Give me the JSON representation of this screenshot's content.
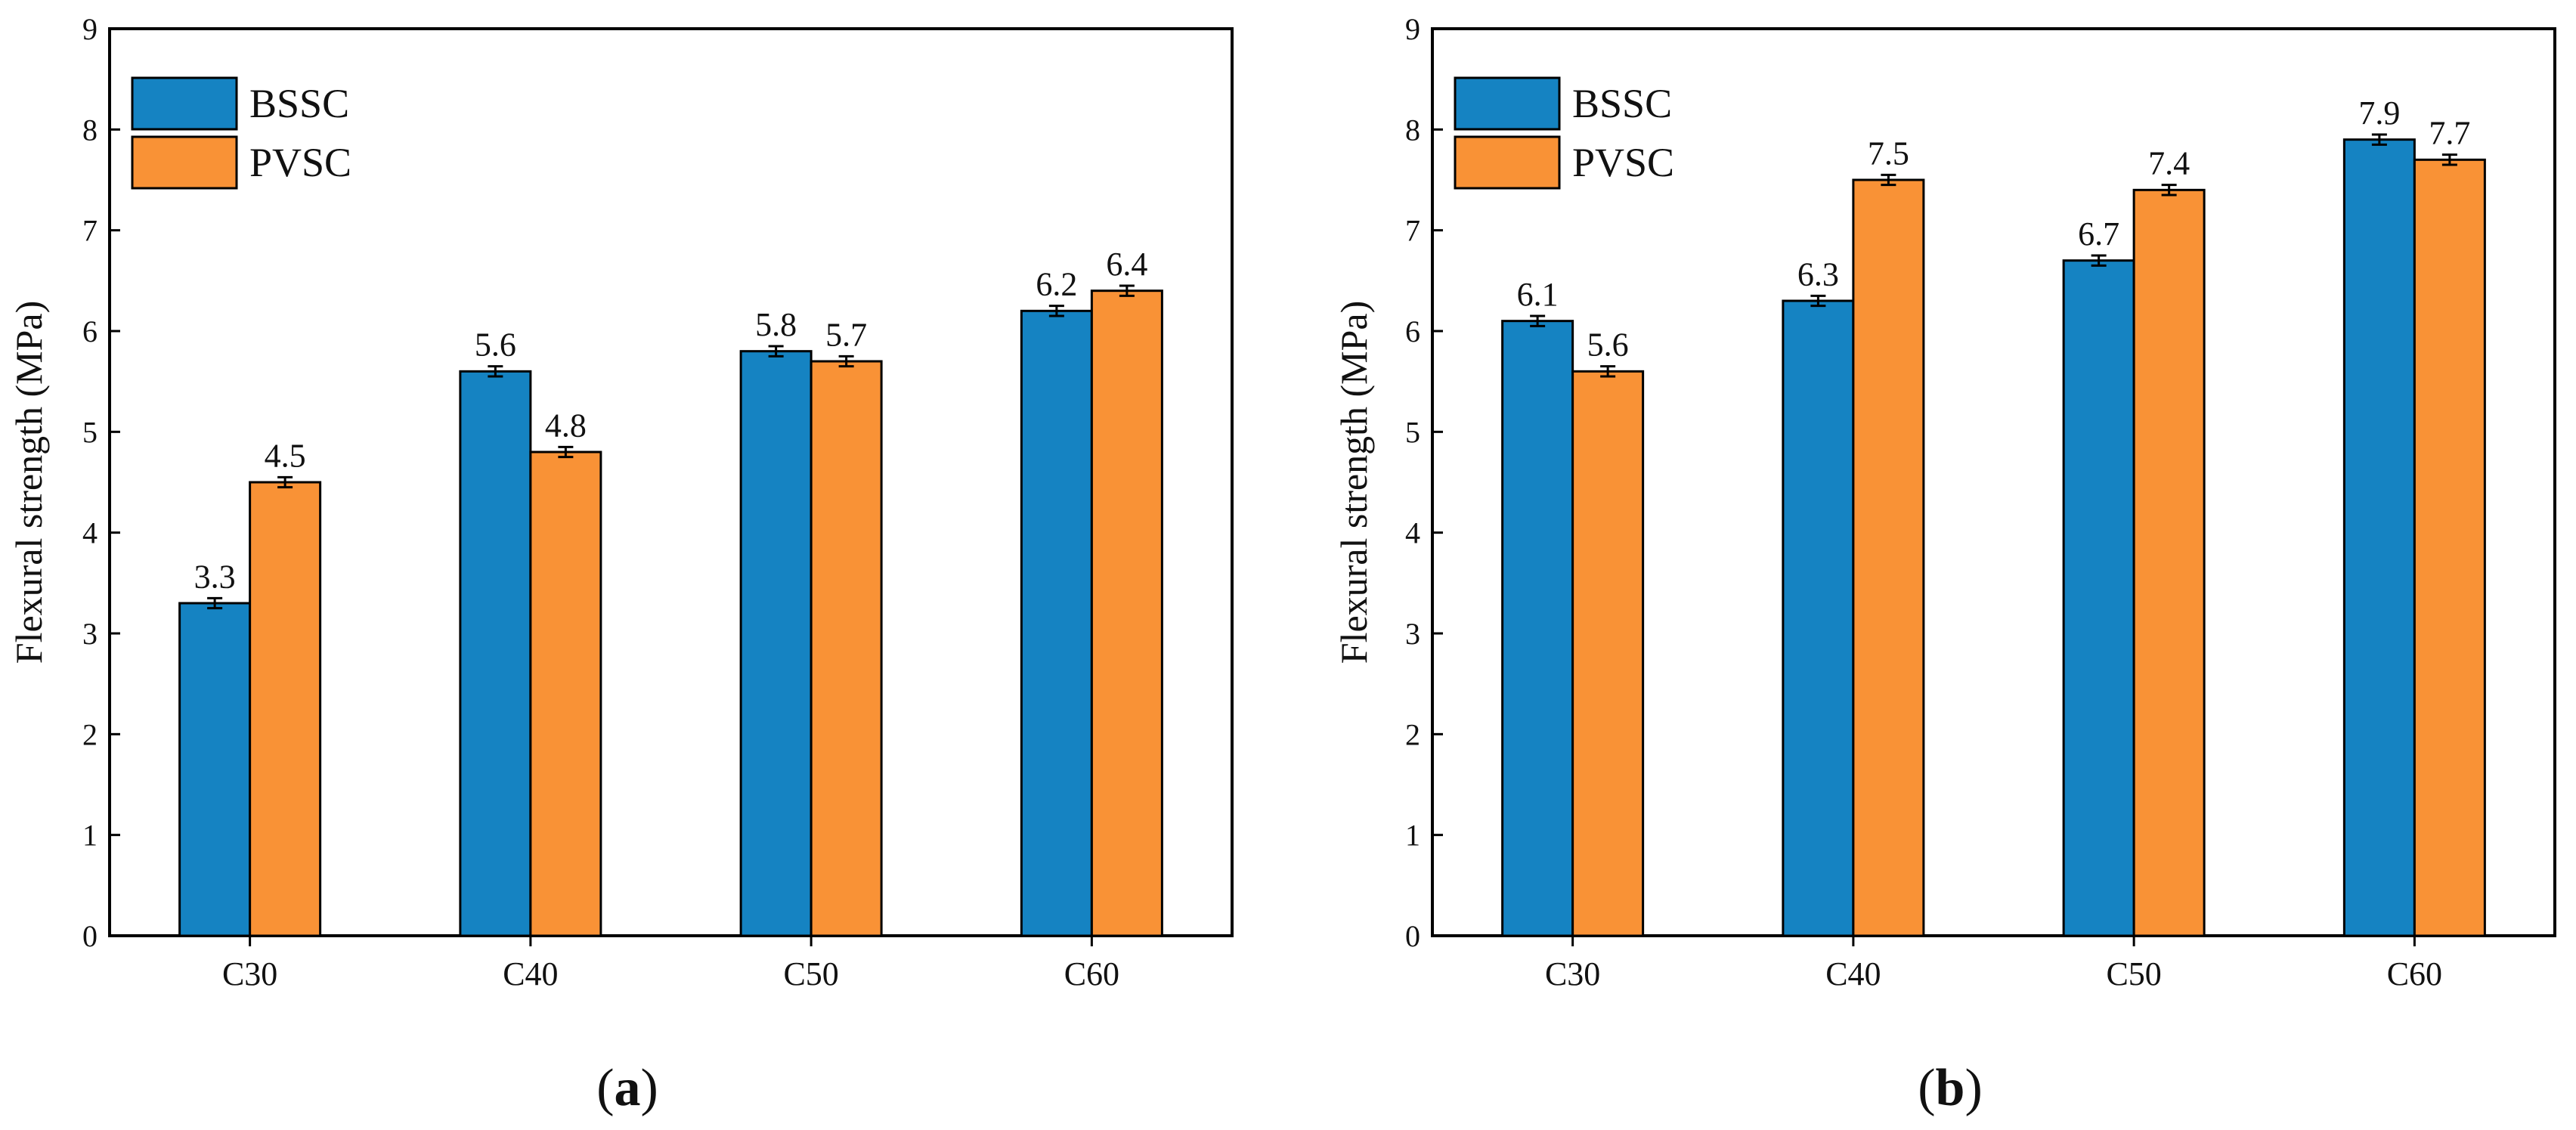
{
  "colors": {
    "BSSC": "#1583c2",
    "PVSC": "#f99236"
  },
  "chart_data": [
    {
      "type": "bar",
      "panel_label": "a",
      "categories": [
        "C30",
        "C40",
        "C50",
        "C60"
      ],
      "series": [
        {
          "name": "BSSC",
          "values": [
            3.3,
            5.6,
            5.8,
            6.2
          ],
          "labels": [
            "3.3",
            "5.6",
            "5.8",
            "6.2"
          ],
          "errors": [
            0.05,
            0.05,
            0.05,
            0.05
          ]
        },
        {
          "name": "PVSC",
          "values": [
            4.5,
            4.8,
            5.7,
            6.4
          ],
          "labels": [
            "4.5",
            "4.8",
            "5.7",
            "6.4"
          ],
          "errors": [
            0.05,
            0.05,
            0.05,
            0.05
          ]
        }
      ],
      "xlabel": "",
      "ylabel": "Flexural strength (MPa)",
      "ylim": [
        0,
        9
      ],
      "yticks": [
        "0",
        "1",
        "2",
        "3",
        "4",
        "5",
        "6",
        "7",
        "8",
        "9"
      ],
      "legend": "top-left"
    },
    {
      "type": "bar",
      "panel_label": "b",
      "categories": [
        "C30",
        "C40",
        "C50",
        "C60"
      ],
      "series": [
        {
          "name": "BSSC",
          "values": [
            6.1,
            6.3,
            6.7,
            7.9
          ],
          "labels": [
            "6.1",
            "6.3",
            "6.7",
            "7.9"
          ],
          "errors": [
            0.05,
            0.05,
            0.05,
            0.05
          ]
        },
        {
          "name": "PVSC",
          "values": [
            5.6,
            7.5,
            7.4,
            7.7
          ],
          "labels": [
            "5.6",
            "7.5",
            "7.4",
            "7.7"
          ],
          "errors": [
            0.05,
            0.05,
            0.05,
            0.05
          ]
        }
      ],
      "xlabel": "",
      "ylabel": "Flexural strength (MPa)",
      "ylim": [
        0,
        9
      ],
      "yticks": [
        "0",
        "1",
        "2",
        "3",
        "4",
        "5",
        "6",
        "7",
        "8",
        "9"
      ],
      "legend": "top-left"
    }
  ]
}
